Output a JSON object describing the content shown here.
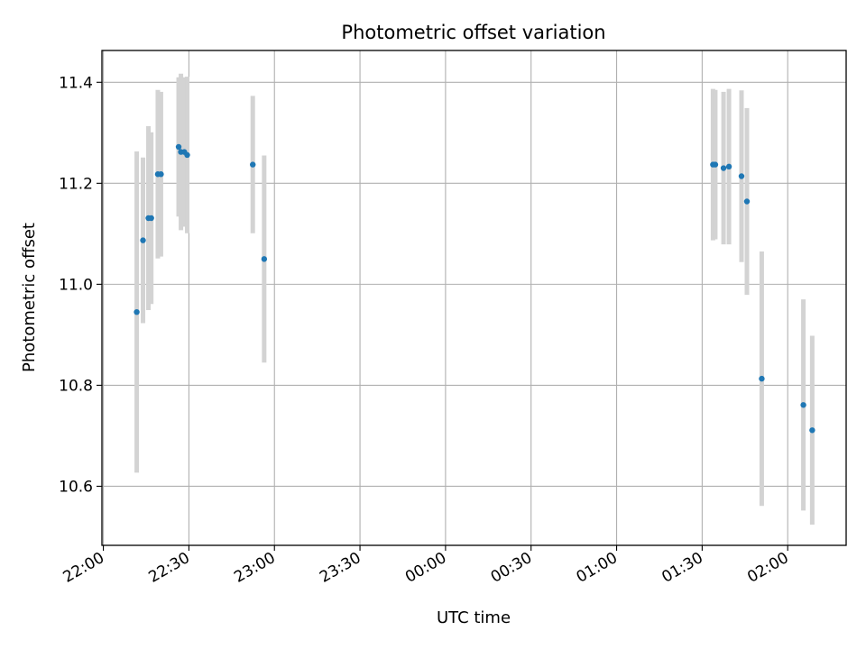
{
  "chart_data": {
    "type": "scatter",
    "title": "Photometric offset variation",
    "xlabel": "UTC time",
    "ylabel": "Photometric offset",
    "grid": true,
    "x_ticks": [
      {
        "minutes": 0,
        "label": "22:00"
      },
      {
        "minutes": 30,
        "label": "22:30"
      },
      {
        "minutes": 60,
        "label": "23:00"
      },
      {
        "minutes": 90,
        "label": "23:30"
      },
      {
        "minutes": 120,
        "label": "00:00"
      },
      {
        "minutes": 150,
        "label": "00:30"
      },
      {
        "minutes": 180,
        "label": "01:00"
      },
      {
        "minutes": 210,
        "label": "01:30"
      },
      {
        "minutes": 240,
        "label": "02:00"
      }
    ],
    "x_range_minutes": [
      -0.5,
      260.5
    ],
    "y_ticks": [
      {
        "value": 10.6,
        "label": "10.6"
      },
      {
        "value": 10.8,
        "label": "10.8"
      },
      {
        "value": 11.0,
        "label": "11.0"
      },
      {
        "value": 11.2,
        "label": "11.2"
      },
      {
        "value": 11.4,
        "label": "11.4"
      }
    ],
    "ylim": [
      10.483,
      11.463
    ],
    "point_color": "#1f77b4",
    "errorbar_color": "#d3d3d3",
    "points": [
      {
        "minutes": 11.7,
        "y": 10.945,
        "err": 0.318
      },
      {
        "minutes": 13.9,
        "y": 11.087,
        "err": 0.164
      },
      {
        "minutes": 15.8,
        "y": 11.131,
        "err": 0.182
      },
      {
        "minutes": 16.8,
        "y": 11.131,
        "err": 0.17
      },
      {
        "minutes": 19.1,
        "y": 11.218,
        "err": 0.167
      },
      {
        "minutes": 20.2,
        "y": 11.218,
        "err": 0.163
      },
      {
        "minutes": 26.4,
        "y": 11.272,
        "err": 0.138
      },
      {
        "minutes": 27.2,
        "y": 11.262,
        "err": 0.155
      },
      {
        "minutes": 28.4,
        "y": 11.262,
        "err": 0.148
      },
      {
        "minutes": 29.4,
        "y": 11.256,
        "err": 0.155
      },
      {
        "minutes": 52.4,
        "y": 11.237,
        "err": 0.136
      },
      {
        "minutes": 56.4,
        "y": 11.05,
        "err": 0.205
      },
      {
        "minutes": 213.8,
        "y": 11.237,
        "err": 0.15
      },
      {
        "minutes": 214.6,
        "y": 11.237,
        "err": 0.148
      },
      {
        "minutes": 217.5,
        "y": 11.23,
        "err": 0.151
      },
      {
        "minutes": 219.4,
        "y": 11.233,
        "err": 0.154
      },
      {
        "minutes": 223.8,
        "y": 11.214,
        "err": 0.17
      },
      {
        "minutes": 225.7,
        "y": 11.164,
        "err": 0.185
      },
      {
        "minutes": 230.9,
        "y": 10.813,
        "err": 0.252
      },
      {
        "minutes": 245.5,
        "y": 10.761,
        "err": 0.209
      },
      {
        "minutes": 248.6,
        "y": 10.711,
        "err": 0.187
      }
    ]
  }
}
